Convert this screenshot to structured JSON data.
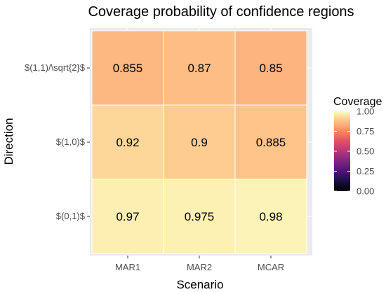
{
  "chart_data": {
    "type": "heatmap",
    "title": "Coverage probability of confidence regions",
    "xlabel": "Scenario",
    "ylabel": "Direction",
    "x_categories": [
      "MAR1",
      "MAR2",
      "MCAR"
    ],
    "y_categories": [
      "$(1,1)/\\sqrt{2}$",
      "$(1,0)$",
      "$(0,1)$"
    ],
    "values": [
      [
        0.855,
        0.87,
        0.85
      ],
      [
        0.92,
        0.9,
        0.885
      ],
      [
        0.97,
        0.975,
        0.98
      ]
    ],
    "value_labels": [
      [
        "0.855",
        "0.87",
        "0.85"
      ],
      [
        "0.92",
        "0.9",
        "0.885"
      ],
      [
        "0.97",
        "0.975",
        "0.98"
      ]
    ],
    "legend": {
      "title": "Coverage",
      "ticks": [
        "0.00",
        "0.25",
        "0.50",
        "0.75",
        "1.00"
      ],
      "tick_values": [
        0,
        0.25,
        0.5,
        0.75,
        1.0
      ],
      "range": [
        0,
        1
      ],
      "placement": "right"
    },
    "colorscale": "magma",
    "colors": {
      "panel_background": "#ebebeb",
      "grid": "#ffffff",
      "tile_border": "#ffffff"
    }
  }
}
